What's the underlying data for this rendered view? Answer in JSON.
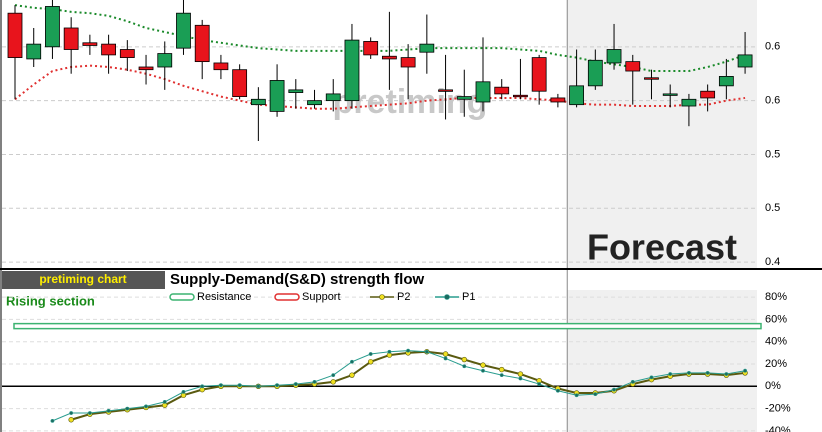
{
  "chart_data": [
    {
      "type": "candlestick",
      "watermark": "pretiming",
      "annotation": "Forecast",
      "forecast_start": 30,
      "up_color": "#1a9e55",
      "down_color": "#e8141c",
      "open": [
        0.625,
        0.591,
        0.6,
        0.614,
        0.603,
        0.602,
        0.598,
        0.585,
        0.585,
        0.599,
        0.616,
        0.588,
        0.583,
        0.557,
        0.552,
        0.566,
        0.557,
        0.56,
        0.56,
        0.604,
        0.593,
        0.592,
        0.596,
        0.568,
        0.561,
        0.559,
        0.57,
        0.564,
        0.592,
        0.562,
        0.557,
        0.571,
        0.588,
        0.589,
        0.577,
        0.565,
        0.556,
        0.567,
        0.571,
        0.585
      ],
      "high": [
        0.631,
        0.614,
        0.635,
        0.622,
        0.609,
        0.609,
        0.605,
        0.594,
        0.604,
        0.635,
        0.62,
        0.594,
        0.587,
        0.57,
        0.587,
        0.576,
        0.568,
        0.576,
        0.617,
        0.607,
        0.626,
        0.602,
        0.624,
        0.594,
        0.583,
        0.607,
        0.576,
        0.591,
        0.594,
        0.565,
        0.598,
        0.598,
        0.617,
        0.594,
        0.583,
        0.572,
        0.565,
        0.572,
        0.591,
        0.611
      ],
      "low": [
        0.561,
        0.585,
        0.591,
        0.58,
        0.594,
        0.58,
        0.582,
        0.572,
        0.568,
        0.594,
        0.576,
        0.576,
        0.561,
        0.53,
        0.548,
        0.554,
        0.554,
        0.552,
        0.554,
        0.591,
        0.568,
        0.561,
        0.58,
        0.546,
        0.548,
        0.552,
        0.561,
        0.561,
        0.557,
        0.555,
        0.555,
        0.568,
        0.583,
        0.557,
        0.561,
        0.555,
        0.541,
        0.552,
        0.561,
        0.58
      ],
      "close": [
        0.592,
        0.602,
        0.63,
        0.598,
        0.601,
        0.594,
        0.592,
        0.583,
        0.595,
        0.625,
        0.589,
        0.583,
        0.563,
        0.561,
        0.575,
        0.568,
        0.56,
        0.565,
        0.605,
        0.594,
        0.591,
        0.585,
        0.602,
        0.567,
        0.563,
        0.574,
        0.565,
        0.563,
        0.567,
        0.559,
        0.571,
        0.59,
        0.598,
        0.582,
        0.576,
        0.565,
        0.561,
        0.562,
        0.578,
        0.594
      ],
      "bands": [
        {
          "color": "#1a8a2a",
          "values": [
            0.631,
            0.629,
            0.628,
            0.626,
            0.625,
            0.623,
            0.619,
            0.614,
            0.611,
            0.608,
            0.605,
            0.603,
            0.601,
            0.599,
            0.598,
            0.597,
            0.597,
            0.597,
            0.597,
            0.597,
            0.597,
            0.598,
            0.599,
            0.599,
            0.599,
            0.599,
            0.599,
            0.598,
            0.597,
            0.594,
            0.592,
            0.589,
            0.587,
            0.585,
            0.582,
            0.582,
            0.582,
            0.585,
            0.589,
            0.594
          ]
        },
        {
          "color": "#e03030",
          "values": [
            0.561,
            0.572,
            0.582,
            0.585,
            0.586,
            0.585,
            0.583,
            0.58,
            0.576,
            0.571,
            0.567,
            0.563,
            0.56,
            0.557,
            0.556,
            0.555,
            0.554,
            0.554,
            0.555,
            0.556,
            0.557,
            0.558,
            0.56,
            0.561,
            0.562,
            0.562,
            0.562,
            0.562,
            0.561,
            0.56,
            0.558,
            0.557,
            0.557,
            0.556,
            0.556,
            0.556,
            0.557,
            0.557,
            0.56,
            0.562
          ]
        }
      ],
      "ylim": [
        0.4356,
        0.6348
      ],
      "yticks": [
        {
          "value": 0.6,
          "label": "0.6"
        },
        {
          "value": 0.56,
          "label": "0.6"
        },
        {
          "value": 0.52,
          "label": "0.5"
        },
        {
          "value": 0.48,
          "label": "0.5"
        },
        {
          "value": 0.44,
          "label": "0.4"
        }
      ],
      "grid": true
    },
    {
      "type": "line",
      "badge": "pretiming chart",
      "title": "Supply-Demand(S&D)  strength flow",
      "annotation": "Rising section",
      "forecast_start": 30,
      "series": [
        {
          "name": "Resistance",
          "color": "#3cb371",
          "level": 54
        },
        {
          "name": "Support",
          "color": "#e03030"
        },
        {
          "name": "P2",
          "color": "#5a5a10",
          "marker_color": "#f0e020",
          "values": [
            null,
            null,
            null,
            -30,
            -25,
            -23,
            -21,
            -19,
            -17,
            -8,
            -3,
            0,
            0,
            0,
            0,
            1,
            2,
            4,
            10,
            22,
            28,
            30,
            31,
            29,
            24,
            19,
            15,
            11,
            5,
            -2,
            -6,
            -6,
            -4,
            2,
            6,
            9,
            11,
            11,
            10,
            12
          ]
        },
        {
          "name": "P1",
          "color": "#2a9d8f",
          "marker_color": "#1d6b60",
          "values": [
            null,
            null,
            -31,
            -24,
            -24,
            -22,
            -20,
            -18,
            -14,
            -5,
            0,
            1,
            1,
            0,
            1,
            2,
            4,
            10,
            22,
            29,
            31,
            32,
            31,
            25,
            18,
            14,
            10,
            7,
            2,
            -4,
            -8,
            -7,
            -3,
            4,
            8,
            11,
            12,
            12,
            11,
            14
          ]
        }
      ],
      "zero_line": 0,
      "ylim": [
        -41,
        90
      ],
      "yticks": [
        {
          "value": 80,
          "label": "80%"
        },
        {
          "value": 60,
          "label": "60%"
        },
        {
          "value": 40,
          "label": "40%"
        },
        {
          "value": 20,
          "label": "20%"
        },
        {
          "value": 0,
          "label": "0%"
        },
        {
          "value": -20,
          "label": "-20%"
        },
        {
          "value": -40,
          "label": "-40%"
        }
      ],
      "grid": true
    }
  ]
}
